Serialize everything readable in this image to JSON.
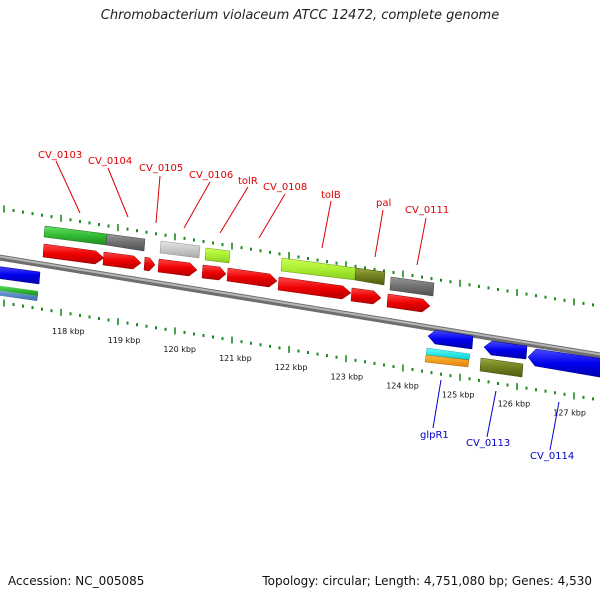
{
  "title": "Chromobacterium violaceum ATCC 12472, complete genome",
  "footer": {
    "accession": "Accession: NC_005085",
    "summary": "Topology: circular; Length: 4,751,080 bp; Genes: 4,530"
  },
  "scale_labels": [
    "118 kbp",
    "119 kbp",
    "120 kbp",
    "121 kbp",
    "122 kbp",
    "123 kbp",
    "124 kbp",
    "125 kbp",
    "126 kbp",
    "127 kbp"
  ],
  "top_gene_labels": [
    "CV_0103",
    "CV_0104",
    "CV_0105",
    "CV_0106",
    "tolR",
    "CV_0108",
    "tolB",
    "pal",
    "CV_0111"
  ],
  "bottom_gene_labels": [
    "glpR1",
    "CV_0113",
    "CV_0114"
  ],
  "colors": {
    "top_label": "#dd0000",
    "bottom_label": "#0000cc",
    "cds": "#ff0000",
    "reverse_cds": "#0000ff",
    "tick": "#1e8a1e",
    "backbone": "#8c8c8c"
  }
}
